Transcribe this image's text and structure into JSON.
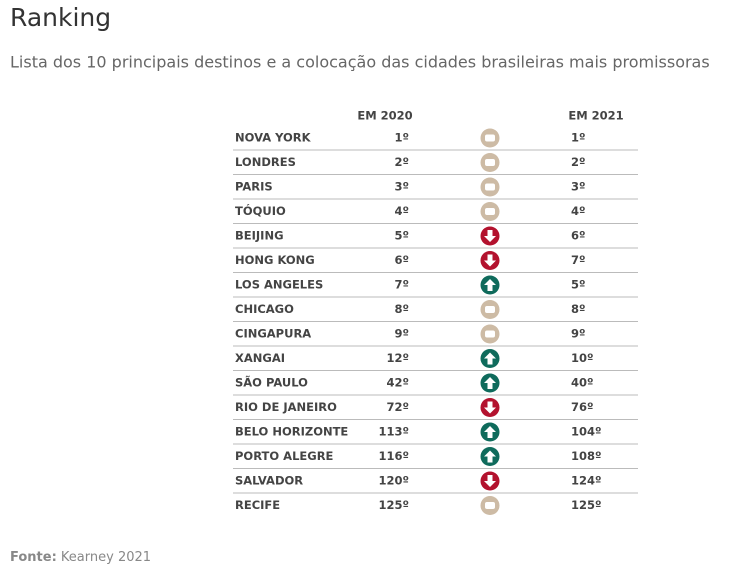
{
  "header": {
    "title": "Ranking",
    "subtitle": "Lista dos 10 principais destinos e a colocação das cidades brasileiras mais promissoras"
  },
  "table": {
    "columns": [
      "EM 2020",
      "EM 2021"
    ],
    "rows": [
      {
        "city": "NOVA YORK",
        "rank_2020": "1º",
        "trend": "same",
        "rank_2021": "1º"
      },
      {
        "city": "LONDRES",
        "rank_2020": "2º",
        "trend": "same",
        "rank_2021": "2º"
      },
      {
        "city": "PARIS",
        "rank_2020": "3º",
        "trend": "same",
        "rank_2021": "3º"
      },
      {
        "city": "TÓQUIO",
        "rank_2020": "4º",
        "trend": "same",
        "rank_2021": "4º"
      },
      {
        "city": "BEIJING",
        "rank_2020": "5º",
        "trend": "down",
        "rank_2021": "6º"
      },
      {
        "city": "HONG KONG",
        "rank_2020": "6º",
        "trend": "down",
        "rank_2021": "7º"
      },
      {
        "city": "LOS ANGELES",
        "rank_2020": "7º",
        "trend": "up",
        "rank_2021": "5º"
      },
      {
        "city": "CHICAGO",
        "rank_2020": "8º",
        "trend": "same",
        "rank_2021": "8º"
      },
      {
        "city": "CINGAPURA",
        "rank_2020": "9º",
        "trend": "same",
        "rank_2021": "9º"
      },
      {
        "city": "XANGAI",
        "rank_2020": "12º",
        "trend": "up",
        "rank_2021": "10º"
      },
      {
        "city": "SÃO PAULO",
        "rank_2020": "42º",
        "trend": "up",
        "rank_2021": "40º"
      },
      {
        "city": "RIO DE JANEIRO",
        "rank_2020": "72º",
        "trend": "down",
        "rank_2021": "76º"
      },
      {
        "city": "BELO HORIZONTE",
        "rank_2020": "113º",
        "trend": "up",
        "rank_2021": "104º"
      },
      {
        "city": "PORTO ALEGRE",
        "rank_2020": "116º",
        "trend": "up",
        "rank_2021": "108º"
      },
      {
        "city": "SALVADOR",
        "rank_2020": "120º",
        "trend": "down",
        "rank_2021": "124º"
      },
      {
        "city": "RECIFE",
        "rank_2020": "125º",
        "trend": "same",
        "rank_2021": "125º"
      }
    ]
  },
  "footer": {
    "label": "Fonte:",
    "source": "Kearney 2021"
  }
}
